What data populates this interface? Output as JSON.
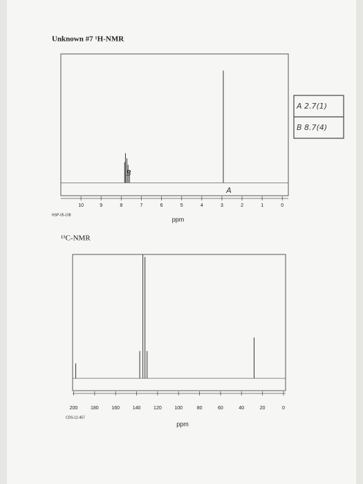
{
  "chart_data": [
    {
      "type": "stick",
      "title": "Unknown #7 ¹H-NMR",
      "code": "HSP-05-108",
      "xlabel": "ppm",
      "xlim": [
        11,
        -0.3
      ],
      "ylim": [
        -10,
        100
      ],
      "xticks": [
        10,
        9,
        8,
        7,
        6,
        5,
        4,
        3,
        2,
        1,
        0
      ],
      "x": [
        7.83,
        7.79,
        7.72,
        7.66,
        7.59,
        2.93
      ],
      "values": [
        16,
        23,
        19,
        14,
        10,
        87
      ],
      "color": "#333333",
      "annotations": [
        "B",
        "A"
      ]
    },
    {
      "type": "stick",
      "title": "¹³C-NMR",
      "code": "CDS-12-457",
      "xlabel": "ppm",
      "xlim": [
        201,
        -2
      ],
      "ylim": [
        -10,
        100
      ],
      "xticks": [
        200,
        180,
        160,
        140,
        120,
        100,
        80,
        60,
        40,
        20,
        0
      ],
      "x": [
        198,
        137,
        134,
        132,
        130,
        28
      ],
      "values": [
        12,
        22,
        100,
        98,
        22,
        33
      ],
      "color": "#333333"
    }
  ],
  "handwritten_table": {
    "rows": [
      "A 2.7(1)",
      "B 8.7(4)"
    ]
  }
}
